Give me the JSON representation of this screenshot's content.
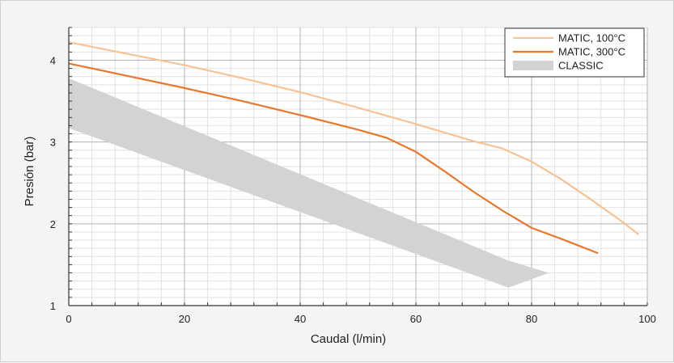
{
  "chart_data": {
    "type": "line",
    "xlabel": "Caudal (l/min)",
    "ylabel": "Presión (bar)",
    "xlim": [
      0,
      100
    ],
    "ylim": [
      1,
      4.4
    ],
    "x_ticks": [
      0,
      20,
      40,
      60,
      80,
      100
    ],
    "y_ticks": [
      1,
      2,
      3,
      4
    ],
    "grid": true,
    "legend_position": "top-right",
    "series": [
      {
        "name": "MATIC, 100°C",
        "color": "#f7c394",
        "type": "line",
        "x": [
          0,
          10,
          20,
          30,
          40,
          50,
          60,
          70,
          75,
          80,
          85,
          90,
          95,
          98.5
        ],
        "y": [
          4.22,
          4.08,
          3.94,
          3.78,
          3.61,
          3.42,
          3.22,
          3.01,
          2.92,
          2.76,
          2.55,
          2.31,
          2.06,
          1.87
        ]
      },
      {
        "name": "MATIC, 300°C",
        "color": "#e8782d",
        "type": "line",
        "x": [
          0,
          10,
          20,
          30,
          40,
          50,
          55,
          60,
          65,
          70,
          75,
          80,
          85,
          91.5
        ],
        "y": [
          3.96,
          3.81,
          3.66,
          3.5,
          3.33,
          3.15,
          3.05,
          2.88,
          2.64,
          2.39,
          2.16,
          1.95,
          1.82,
          1.64
        ]
      },
      {
        "name": "CLASSIC",
        "color": "#d3d3d3",
        "type": "band",
        "upper": {
          "x": [
            0,
            76,
            83
          ],
          "y": [
            3.78,
            1.55,
            1.4
          ]
        },
        "lower": {
          "x": [
            0,
            76
          ],
          "y": [
            3.17,
            1.22
          ]
        }
      }
    ]
  }
}
